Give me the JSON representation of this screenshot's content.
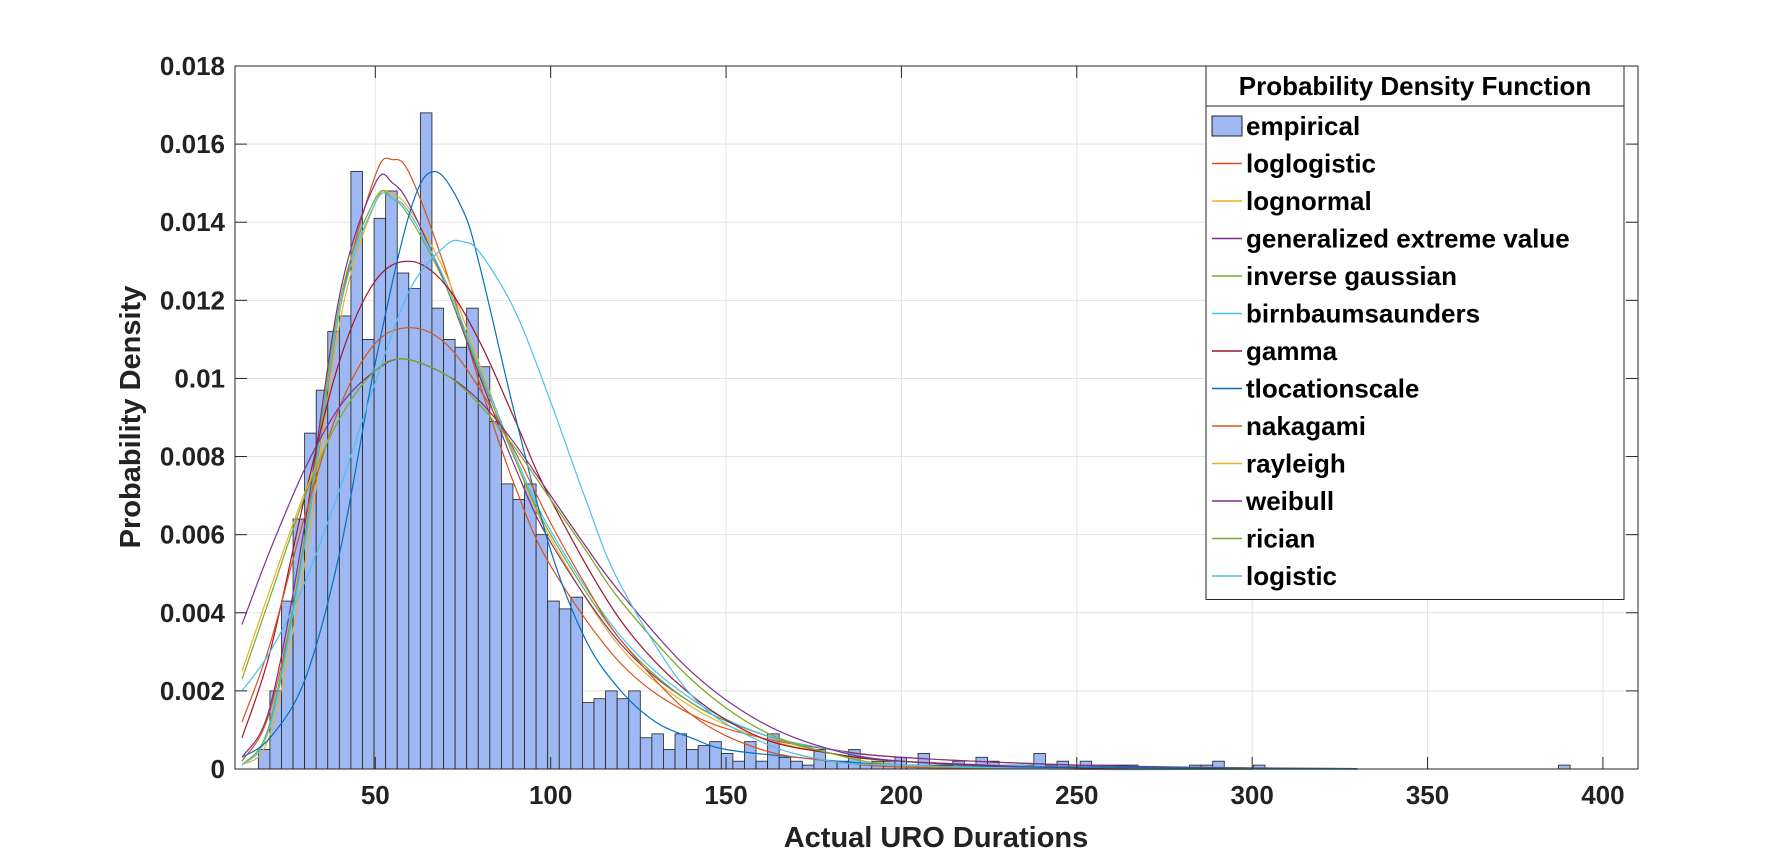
{
  "chart_data": {
    "type": "bar",
    "xlabel": "Actual URO Durations",
    "ylabel": "Probability Density",
    "xlim": [
      10,
      410
    ],
    "ylim": [
      0,
      0.018
    ],
    "xticks": [
      50,
      100,
      150,
      200,
      250,
      300,
      350,
      400
    ],
    "yticks": [
      0,
      0.002,
      0.004,
      0.006,
      0.008,
      0.01,
      0.012,
      0.014,
      0.016,
      0.018
    ],
    "ytick_labels": [
      "0",
      "0.002",
      "0.004",
      "0.006",
      "0.008",
      "0.01",
      "0.012",
      "0.014",
      "0.016",
      "0.018"
    ],
    "grid": true,
    "legend": {
      "title": "Probability Density Function",
      "placement": "top-right",
      "entries": [
        "empirical",
        "loglogistic",
        "lognormal",
        "generalized extreme value",
        "inverse gaussian",
        "birnbaumsaunders",
        "gamma",
        "tlocationscale",
        "nakagami",
        "rayleigh",
        "weibull",
        "rician",
        "logistic"
      ]
    },
    "histogram": {
      "name": "empirical",
      "color": "#9DB8F2",
      "bin_width": 3.3,
      "bin_centers": [
        18.3,
        21.6,
        24.9,
        28.2,
        31.5,
        34.8,
        38.1,
        41.4,
        44.7,
        48,
        51.3,
        54.6,
        57.9,
        61.2,
        64.5,
        67.8,
        71.1,
        74.4,
        77.7,
        81,
        84.3,
        87.6,
        90.9,
        94.2,
        97.5,
        100.8,
        104.1,
        107.4,
        110.7,
        114,
        117.3,
        120.6,
        123.9,
        127.2,
        130.5,
        133.8,
        137.1,
        140.4,
        143.7,
        147,
        150.3,
        153.6,
        156.9,
        160.2,
        163.5,
        166.8,
        170.1,
        173.4,
        176.7,
        180,
        183.3,
        186.6,
        189.9,
        193.2,
        196.5,
        199.8,
        203.1,
        206.4,
        209.7,
        213,
        216.3,
        219.6,
        222.9,
        226.2,
        229.5,
        232.8,
        236.1,
        239.4,
        242.7,
        246,
        249.3,
        252.6,
        255.9,
        259.2,
        262.5,
        265.8,
        283.8,
        287.1,
        290.4,
        302,
        389
      ],
      "values": [
        0.0005,
        0.002,
        0.0043,
        0.0064,
        0.0086,
        0.0097,
        0.0112,
        0.0116,
        0.0153,
        0.011,
        0.0141,
        0.0148,
        0.0127,
        0.0123,
        0.0168,
        0.0118,
        0.011,
        0.0108,
        0.0118,
        0.0103,
        0.0089,
        0.0073,
        0.0069,
        0.0073,
        0.006,
        0.0043,
        0.0041,
        0.0044,
        0.0017,
        0.0018,
        0.002,
        0.0018,
        0.002,
        0.0008,
        0.0009,
        0.0005,
        0.0009,
        0.0005,
        0.0006,
        0.0007,
        0.0004,
        0.0002,
        0.0007,
        0.0002,
        0.0009,
        0.0003,
        0.0002,
        0.0001,
        0.0005,
        0.0002,
        0.0002,
        0.0005,
        0.0001,
        0.0002,
        0.0002,
        0.0003,
        0.0001,
        0.0004,
        0.0001,
        0.0001,
        0.0002,
        0.0001,
        0.0003,
        0.0002,
        0.0001,
        0.0001,
        0.0001,
        0.0004,
        0.0001,
        0.0002,
        0.0001,
        0.0002,
        0.0001,
        0.0001,
        0.0001,
        0.0001,
        0.0001,
        0.0001,
        0.0002,
        0.0001,
        0.0001
      ]
    },
    "series": [
      {
        "name": "loglogistic",
        "color": "#D95319",
        "x": [
          12,
          20,
          30,
          40,
          50,
          55,
          60,
          70,
          80,
          90,
          100,
          120,
          140,
          160,
          180,
          200,
          250,
          300,
          330
        ],
        "values": [
          0.0002,
          0.0015,
          0.0058,
          0.0118,
          0.0152,
          0.0156,
          0.0152,
          0.0128,
          0.0098,
          0.0072,
          0.0052,
          0.0027,
          0.0014,
          0.0008,
          0.0005,
          0.0003,
          0.0001,
          3e-05,
          1e-05
        ]
      },
      {
        "name": "lognormal",
        "color": "#EDB120",
        "x": [
          12,
          20,
          30,
          40,
          50,
          55,
          60,
          70,
          80,
          90,
          100,
          120,
          140,
          160,
          180,
          200,
          250,
          300,
          330
        ],
        "values": [
          0.0001,
          0.0009,
          0.0053,
          0.0115,
          0.0145,
          0.0147,
          0.0143,
          0.0127,
          0.0103,
          0.0079,
          0.0059,
          0.0031,
          0.0016,
          0.0008,
          0.0004,
          0.0002,
          5e-05,
          1e-05,
          0.0
        ]
      },
      {
        "name": "generalized extreme value",
        "color": "#7E2F8E",
        "x": [
          12,
          20,
          30,
          40,
          50,
          55,
          60,
          70,
          80,
          90,
          100,
          120,
          140,
          160,
          180,
          200,
          250,
          300,
          330
        ],
        "values": [
          0.0003,
          0.0016,
          0.0063,
          0.0122,
          0.015,
          0.015,
          0.0144,
          0.0124,
          0.01,
          0.0077,
          0.0058,
          0.0032,
          0.0017,
          0.0009,
          0.0005,
          0.0003,
          0.0001,
          2e-05,
          1e-05
        ]
      },
      {
        "name": "inverse gaussian",
        "color": "#77AC30",
        "x": [
          12,
          20,
          30,
          40,
          50,
          55,
          60,
          70,
          80,
          90,
          100,
          120,
          140,
          160,
          180,
          200,
          250,
          300,
          330
        ],
        "values": [
          0.0001,
          0.0012,
          0.006,
          0.012,
          0.0146,
          0.0146,
          0.0141,
          0.0124,
          0.0101,
          0.0079,
          0.006,
          0.0033,
          0.0017,
          0.0009,
          0.0004,
          0.0002,
          4e-05,
          1e-05,
          0.0
        ]
      },
      {
        "name": "birnbaumsaunders",
        "color": "#4DBEEE",
        "x": [
          12,
          20,
          30,
          40,
          50,
          55,
          60,
          70,
          80,
          90,
          100,
          120,
          140,
          160,
          180,
          200,
          250,
          300,
          330
        ],
        "values": [
          0.0001,
          0.0011,
          0.0058,
          0.0118,
          0.0145,
          0.0146,
          0.0142,
          0.0125,
          0.0102,
          0.008,
          0.0061,
          0.0034,
          0.0018,
          0.0009,
          0.0005,
          0.0002,
          5e-05,
          1e-05,
          0.0
        ]
      },
      {
        "name": "gamma",
        "color": "#A2142F",
        "x": [
          12,
          20,
          30,
          40,
          50,
          60,
          70,
          80,
          90,
          100,
          120,
          140,
          160,
          180,
          200,
          250,
          300,
          330
        ],
        "values": [
          0.0008,
          0.003,
          0.007,
          0.0105,
          0.0125,
          0.013,
          0.0124,
          0.0109,
          0.0089,
          0.0069,
          0.0038,
          0.0019,
          0.0008,
          0.0004,
          0.0002,
          2e-05,
          0.0,
          0.0
        ]
      },
      {
        "name": "tlocationscale",
        "color": "#0072BD",
        "x": [
          12,
          20,
          30,
          40,
          50,
          60,
          67,
          75,
          80,
          90,
          100,
          110,
          120,
          130,
          140,
          150,
          170,
          200,
          250,
          300,
          330
        ],
        "values": [
          0.0003,
          0.0008,
          0.0023,
          0.0056,
          0.0104,
          0.0143,
          0.0153,
          0.0143,
          0.0128,
          0.009,
          0.0056,
          0.0033,
          0.002,
          0.0012,
          0.0008,
          0.0005,
          0.0003,
          0.0001,
          5e-05,
          2e-05,
          1e-05
        ]
      },
      {
        "name": "nakagami",
        "color": "#D95319",
        "x": [
          12,
          20,
          30,
          40,
          50,
          60,
          70,
          80,
          90,
          100,
          110,
          120,
          140,
          160,
          180,
          200,
          250,
          300
        ],
        "values": [
          0.0012,
          0.0032,
          0.0065,
          0.0093,
          0.0109,
          0.0113,
          0.0109,
          0.0097,
          0.0081,
          0.0063,
          0.0047,
          0.0033,
          0.0014,
          0.0005,
          0.0002,
          5e-05,
          0.0,
          0.0
        ]
      },
      {
        "name": "rayleigh",
        "color": "#EDB120",
        "x": [
          12,
          20,
          30,
          40,
          50,
          58,
          70,
          80,
          90,
          100,
          110,
          120,
          140,
          160,
          180,
          200,
          250,
          300
        ],
        "values": [
          0.0025,
          0.0046,
          0.0071,
          0.009,
          0.0102,
          0.0105,
          0.0101,
          0.0093,
          0.0082,
          0.0069,
          0.0056,
          0.0043,
          0.0023,
          0.001,
          0.0004,
          0.0001,
          0.0,
          0.0
        ]
      },
      {
        "name": "weibull",
        "color": "#7E2F8E",
        "x": [
          12,
          20,
          30,
          40,
          50,
          58,
          70,
          80,
          90,
          100,
          110,
          120,
          140,
          160,
          180,
          200,
          250,
          300
        ],
        "values": [
          0.0037,
          0.0056,
          0.0077,
          0.0093,
          0.0102,
          0.0105,
          0.0101,
          0.0094,
          0.0083,
          0.007,
          0.0057,
          0.0045,
          0.0025,
          0.0012,
          0.0005,
          0.0002,
          0.0,
          0.0
        ]
      },
      {
        "name": "rician",
        "color": "#77AC30",
        "x": [
          12,
          20,
          30,
          40,
          50,
          58,
          70,
          80,
          90,
          100,
          110,
          120,
          140,
          160,
          180,
          200,
          250,
          300
        ],
        "values": [
          0.0023,
          0.0044,
          0.007,
          0.009,
          0.0102,
          0.0105,
          0.0101,
          0.0093,
          0.0082,
          0.0069,
          0.0056,
          0.0043,
          0.0023,
          0.001,
          0.0004,
          0.0001,
          0.0,
          0.0
        ]
      },
      {
        "name": "logistic",
        "color": "#4DBEEE",
        "x": [
          12,
          20,
          30,
          40,
          50,
          60,
          70,
          75,
          80,
          90,
          100,
          110,
          120,
          140,
          160,
          180,
          200,
          250,
          300,
          330
        ],
        "values": [
          0.002,
          0.003,
          0.0048,
          0.0072,
          0.0099,
          0.0123,
          0.0134,
          0.0135,
          0.0132,
          0.0117,
          0.0094,
          0.0069,
          0.0047,
          0.0019,
          0.0007,
          0.0002,
          0.0001,
          0.0,
          0.0,
          0.0
        ]
      }
    ]
  }
}
